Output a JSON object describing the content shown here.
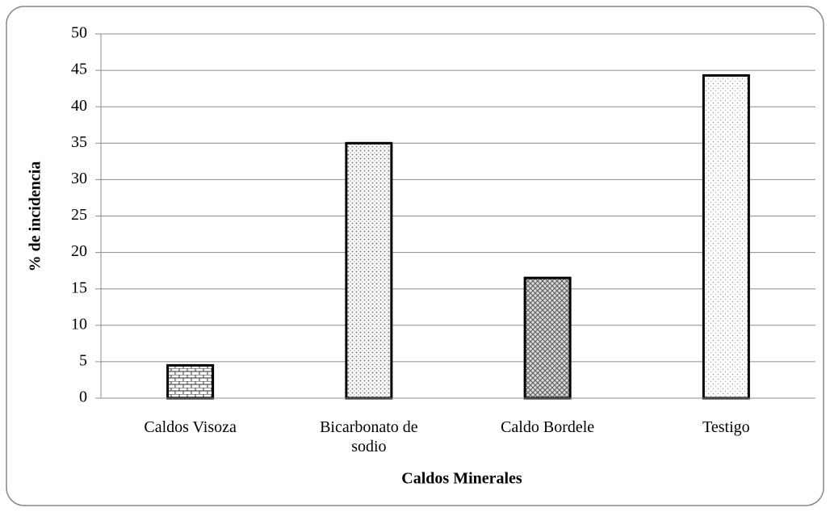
{
  "chart_data": {
    "type": "bar",
    "categories": [
      "Caldos Visoza",
      "Bicarbonato de sodio",
      "Caldo Bordele",
      "Testigo"
    ],
    "values": [
      4.5,
      35,
      16.5,
      44.3
    ],
    "ylim": [
      0,
      50
    ],
    "yticks": [
      0,
      5,
      10,
      15,
      20,
      25,
      30,
      35,
      40,
      45,
      50
    ],
    "grid": true,
    "x_label": "Caldos Minerales",
    "y_label": "% de incidencia"
  }
}
